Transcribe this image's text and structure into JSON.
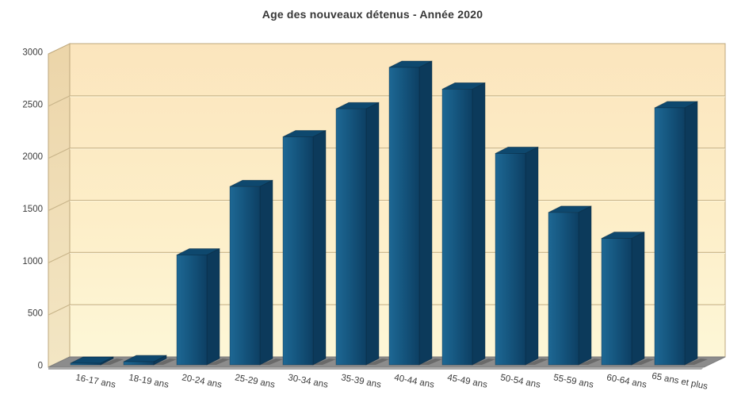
{
  "chart_data": {
    "type": "bar",
    "title": "Age des nouveaux détenus - Année 2020",
    "categories": [
      "16-17 ans",
      "18-19 ans",
      "20-24 ans",
      "25-29 ans",
      "30-34 ans",
      "35-39 ans",
      "40-44 ans",
      "45-49 ans",
      "50-54 ans",
      "55-59 ans",
      "60-64 ans",
      "65 ans et plus"
    ],
    "values": [
      15,
      30,
      1060,
      1720,
      2200,
      2470,
      2870,
      2660,
      2040,
      1470,
      1220,
      2480
    ],
    "xlabel": "",
    "ylabel": "",
    "ylim": [
      0,
      3000
    ],
    "yticks": [
      0,
      500,
      1000,
      1500,
      2000,
      2500,
      3000
    ],
    "grid": true,
    "legend": null,
    "style": "3d-column",
    "colors": {
      "bar_face": "#15567f",
      "bar_face_light": "#1e6894",
      "bar_face_dark": "#0d3f63",
      "bar_top": "#0e486e",
      "bar_side": "#0c3a5b",
      "wall_top": "#fbe5bd",
      "wall_mid": "#fdeec8",
      "wall_bottom": "#fdf7d7",
      "left_wall_top": "#ecd5a9",
      "left_wall_bottom": "#f3e6c4",
      "wall_border": "#bda77c",
      "floor": "#8c8c8c",
      "floor_edge": "#a9a9a9",
      "gridline": "#c8b489",
      "gridline_highlight": "#fdf5da",
      "text": "#3c3c3c",
      "background": "#ffffff"
    }
  }
}
